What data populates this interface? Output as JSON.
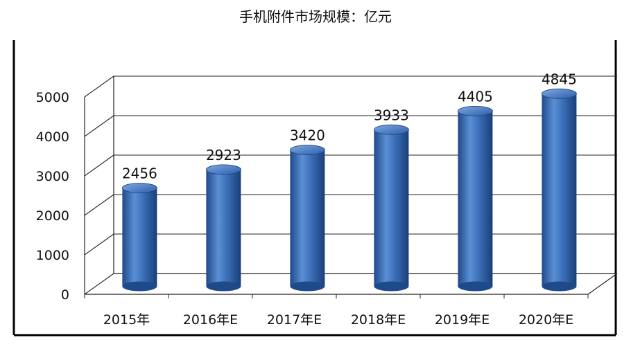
{
  "chart_data": {
    "type": "bar",
    "title": "手机附件市场规模：亿元",
    "categories": [
      "2015年",
      "2016年E",
      "2017年E",
      "2018年E",
      "2019年E",
      "2020年E"
    ],
    "values": [
      2456,
      2923,
      3420,
      3933,
      4405,
      4845
    ],
    "ylim": [
      0,
      5000
    ],
    "yticks": [
      0,
      1000,
      2000,
      3000,
      4000,
      5000
    ],
    "bar_color": "#3b6fb8",
    "grid": true,
    "style": "3d-cylinder"
  }
}
